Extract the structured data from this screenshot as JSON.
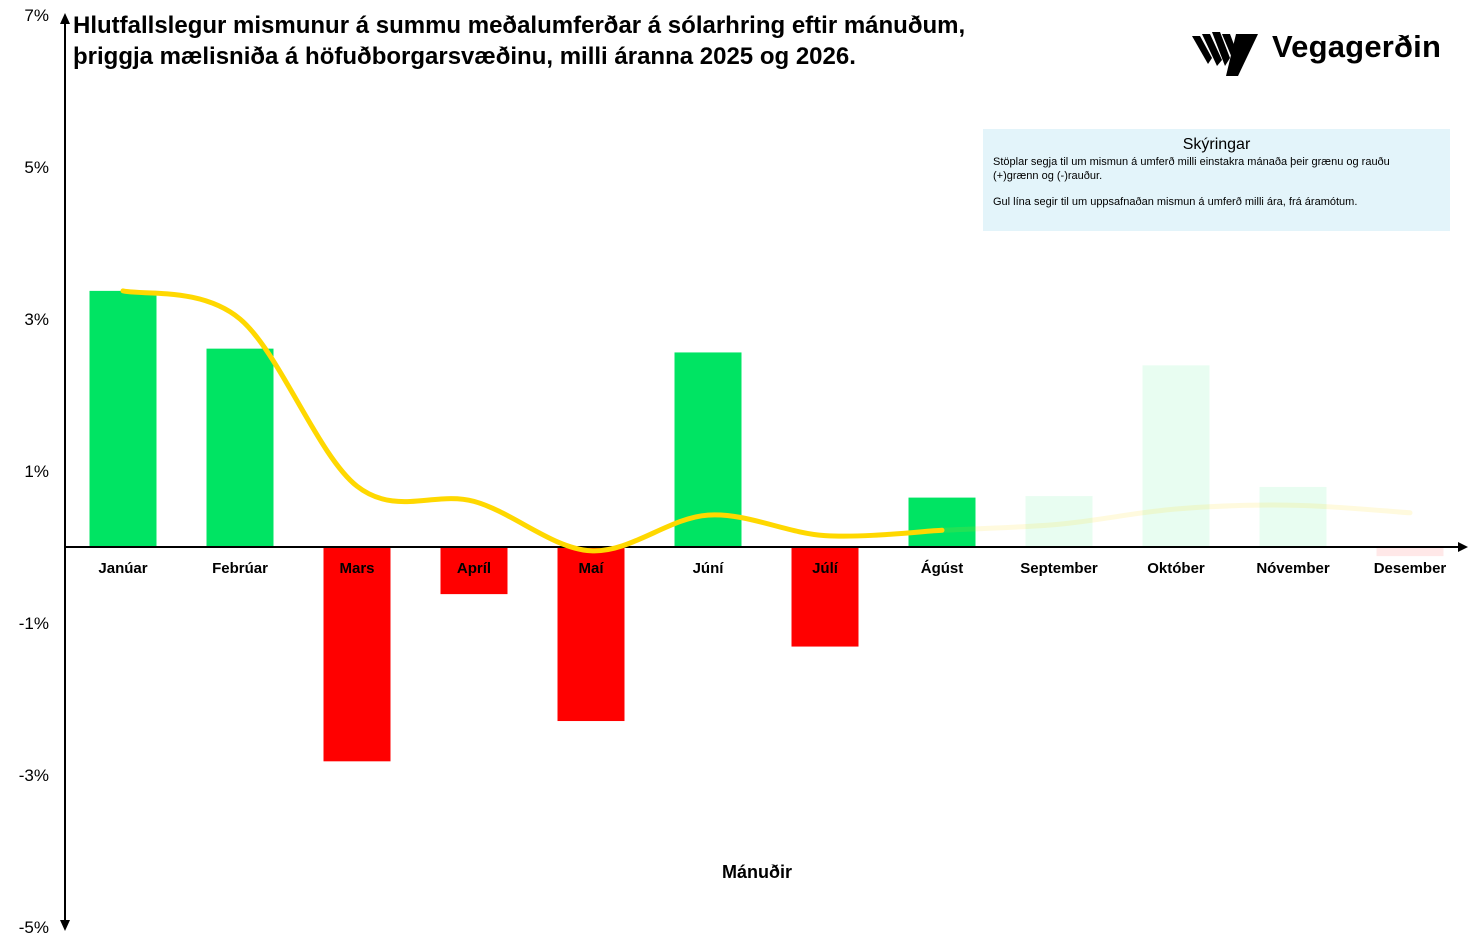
{
  "title": "Hlutfallslegur mismunur á summu meðalumferðar á sólarhring eftir mánuðum, þriggja mælisniða á höfuðborgarsvæðinu, milli áranna 2025 og 2026.",
  "logo": {
    "text": "Vegagerðin",
    "icon": "vegagerdin-stripes-logo"
  },
  "legend": {
    "title": "Skýringar",
    "line1": "Stöplar segja til um mismun á umferð milli einstakra mánaða  þeir grænu og rauðu",
    "line2": "(+)grænn og (-)rauður.",
    "line3": "Gul lína segir til um uppsafnaðan mismun á umferð milli ára, frá áramótum."
  },
  "colors": {
    "positive": "#00e463",
    "negative": "#ff0000",
    "cumulative": "#ffd800",
    "legend_bg": "#e3f4fa"
  },
  "chart_data": {
    "type": "bar",
    "title": "Hlutfallslegur mismunur á summu meðalumferðar á sólarhring eftir mánuðum, þriggja mælisniða á höfuðborgarsvæðinu, milli áranna 2025 og 2026.",
    "xlabel": "Mánuðir",
    "ylabel": "",
    "ylim": [
      -5,
      7
    ],
    "yticks": [
      7,
      5,
      3,
      1,
      -1,
      -3,
      -5
    ],
    "ytick_labels": [
      "7%",
      "5%",
      "3%",
      "1%",
      "-1%",
      "-3%",
      "-5%"
    ],
    "categories": [
      "Janúar",
      "Febrúar",
      "Mars",
      "Apríl",
      "Maí",
      "Júní",
      "Júlí",
      "Ágúst",
      "September",
      "Október",
      "Nóvember",
      "Desember"
    ],
    "series": [
      {
        "kind": "bar",
        "values": [
          3.37,
          2.61,
          -2.82,
          -0.62,
          -2.29,
          2.56,
          -1.31,
          0.65,
          0.67,
          2.39,
          0.79,
          -0.12
        ],
        "faded": [
          false,
          false,
          false,
          false,
          false,
          false,
          false,
          false,
          true,
          true,
          true,
          true
        ]
      },
      {
        "kind": "line",
        "values": [
          3.37,
          3.0,
          0.8,
          0.6,
          -0.05,
          0.42,
          0.15,
          0.22,
          0.3,
          0.5,
          0.55,
          0.45
        ],
        "faded_from_index": 7
      }
    ],
    "grid": false,
    "legend_position": "top-right"
  }
}
